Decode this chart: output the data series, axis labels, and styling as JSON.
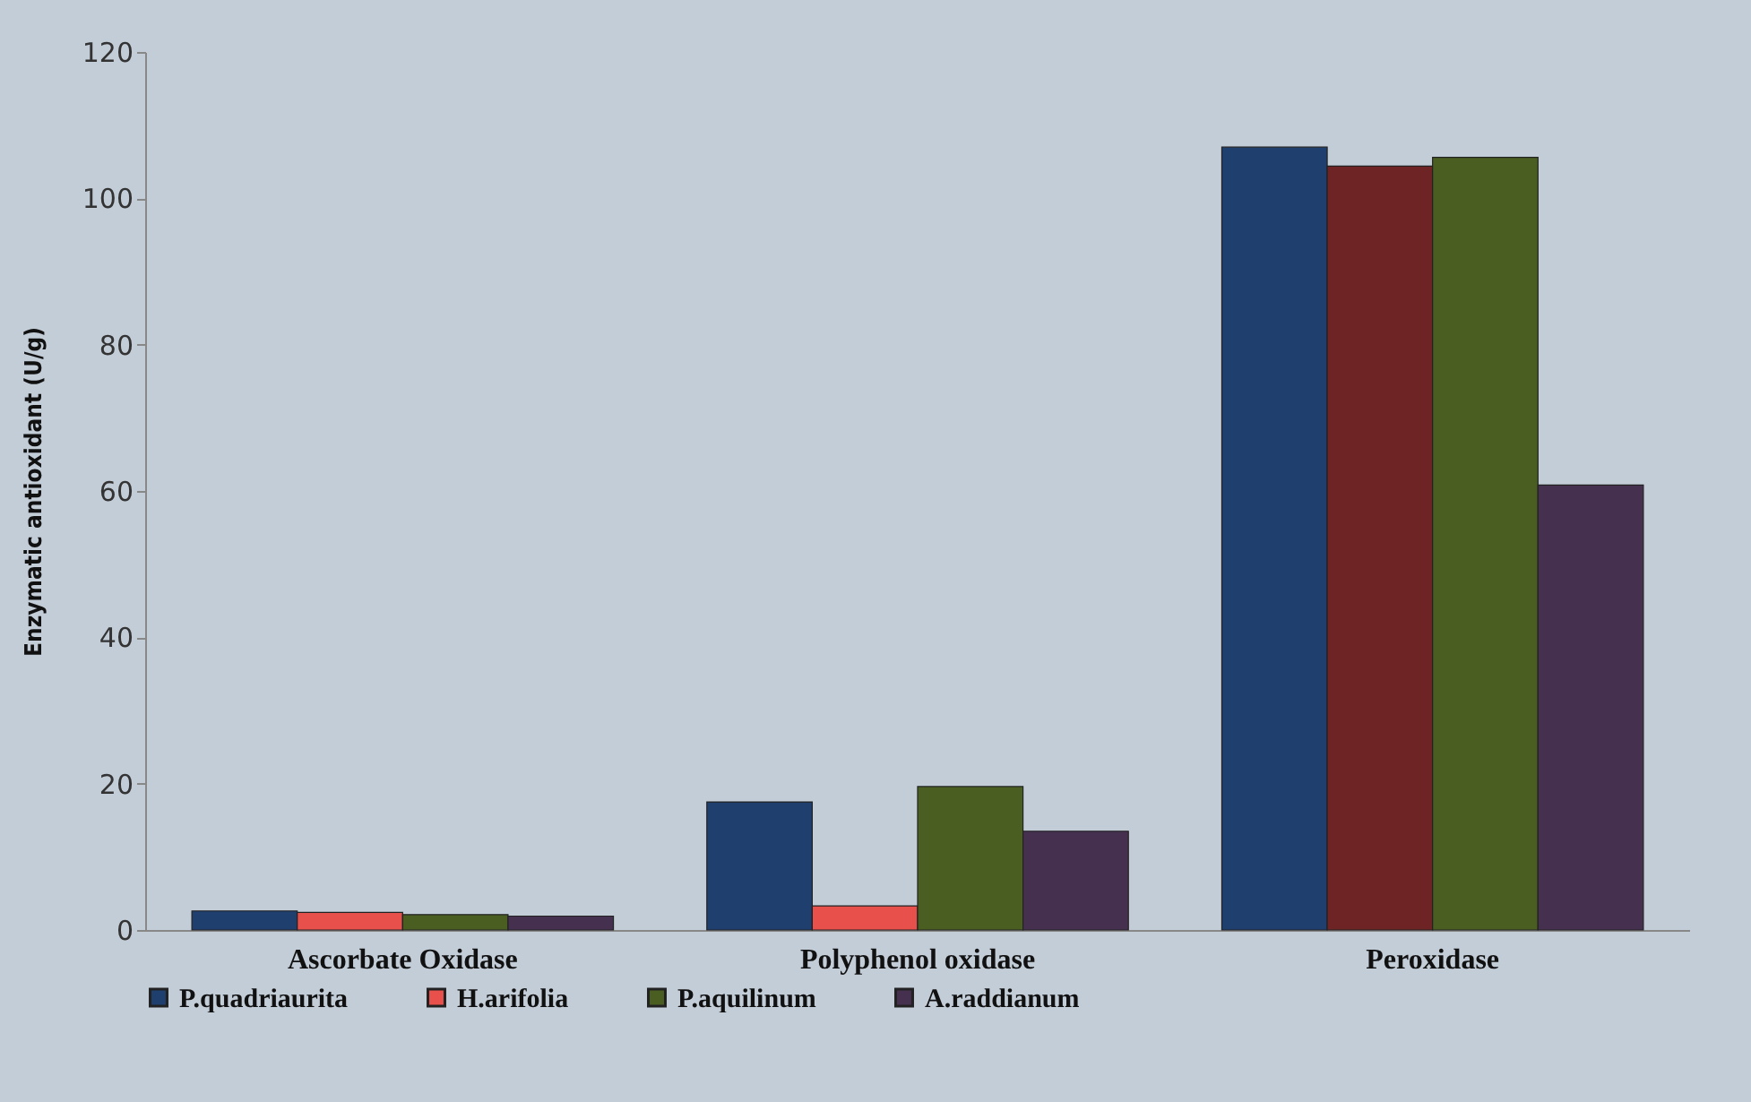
{
  "chart_data": {
    "type": "bar",
    "ylabel": "Enzymatic antioxidant (U/g)",
    "categories": [
      "Ascorbate Oxidase",
      "Polyphenol oxidase",
      "Peroxidase"
    ],
    "series": [
      {
        "name": "P.quadriaurita",
        "color": "#1f3f6e",
        "values": [
          2.6,
          17.5,
          107
        ]
      },
      {
        "name": "H.arifolia",
        "color": "#e8504c",
        "colors": [
          "#e8504c",
          "#e8504c",
          "#6e2424"
        ],
        "values": [
          2.4,
          3.3,
          104.4
        ]
      },
      {
        "name": "P.aquilinum",
        "color": "#4a5e22",
        "values": [
          2.1,
          19.6,
          105.6
        ]
      },
      {
        "name": "A.raddianum",
        "color": "#46304f",
        "values": [
          1.9,
          13.5,
          60.8
        ]
      }
    ],
    "ylim": [
      0,
      120
    ],
    "yticks": [
      0,
      20,
      40,
      60,
      80,
      100,
      120
    ],
    "grid": false,
    "legend": "bottom"
  }
}
